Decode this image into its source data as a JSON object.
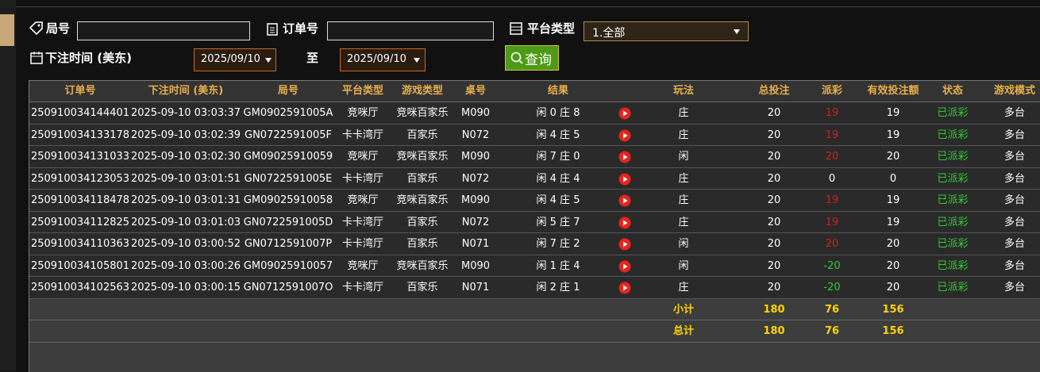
{
  "filters": {
    "round_label": "局号",
    "order_label": "订单号",
    "platform_label": "平台类型",
    "platform_value": "1.全部",
    "time_label": "下注时间 (美东)",
    "date_from": "2025/09/10",
    "range_separator": "至",
    "date_to": "2025/09/10",
    "query_button": "查询"
  },
  "table": {
    "headers": [
      "订单号",
      "下注时间 (美东)",
      "局号",
      "平台类型",
      "游戏类型",
      "桌号",
      "结果",
      "玩法",
      "总投注",
      "派彩",
      "有效投注额",
      "状态",
      "游戏模式"
    ],
    "rows": [
      [
        "250910034144401",
        "2025-09-10 03:03:37",
        "GM0902591005A",
        "竞咪厅",
        "竞咪百家乐",
        "M090",
        "闲 0 庄 8",
        "庄",
        20,
        19,
        19,
        "已派彩",
        "多台"
      ],
      [
        "250910034133178",
        "2025-09-10 03:02:39",
        "GN0722591005F",
        "卡卡湾厅",
        "百家乐",
        "N072",
        "闲 4 庄 5",
        "庄",
        20,
        19,
        19,
        "已派彩",
        "多台"
      ],
      [
        "250910034131033",
        "2025-09-10 03:02:30",
        "GM09025910059",
        "竞咪厅",
        "竞咪百家乐",
        "M090",
        "闲 7 庄 0",
        "闲",
        20,
        20,
        20,
        "已派彩",
        "多台"
      ],
      [
        "250910034123053",
        "2025-09-10 03:01:51",
        "GN0722591005E",
        "卡卡湾厅",
        "百家乐",
        "N072",
        "闲 4 庄 4",
        "庄",
        20,
        0,
        0,
        "已派彩",
        "多台"
      ],
      [
        "250910034118478",
        "2025-09-10 03:01:31",
        "GM09025910058",
        "竞咪厅",
        "竞咪百家乐",
        "M090",
        "闲 4 庄 5",
        "庄",
        20,
        19,
        19,
        "已派彩",
        "多台"
      ],
      [
        "250910034112825",
        "2025-09-10 03:01:03",
        "GN0722591005D",
        "卡卡湾厅",
        "百家乐",
        "N072",
        "闲 5 庄 7",
        "庄",
        20,
        19,
        19,
        "已派彩",
        "多台"
      ],
      [
        "250910034110363",
        "2025-09-10 03:00:52",
        "GN0712591007P",
        "卡卡湾厅",
        "百家乐",
        "N071",
        "闲 7 庄 2",
        "闲",
        20,
        20,
        20,
        "已派彩",
        "多台"
      ],
      [
        "250910034105801",
        "2025-09-10 03:00:26",
        "GM09025910057",
        "竞咪厅",
        "竞咪百家乐",
        "M090",
        "闲 1 庄 4",
        "闲",
        20,
        -20,
        20,
        "已派彩",
        "多台"
      ],
      [
        "250910034102563",
        "2025-09-10 03:00:15",
        "GN0712591007O",
        "卡卡湾厅",
        "百家乐",
        "N071",
        "闲 2 庄 1",
        "庄",
        20,
        -20,
        20,
        "已派彩",
        "多台"
      ]
    ],
    "subtotal": {
      "label": "小计",
      "total_bet": 180,
      "payout": 76,
      "valid_bet": 156
    },
    "total": {
      "label": "总计",
      "total_bet": 180,
      "payout": 76,
      "valid_bet": 156
    }
  }
}
